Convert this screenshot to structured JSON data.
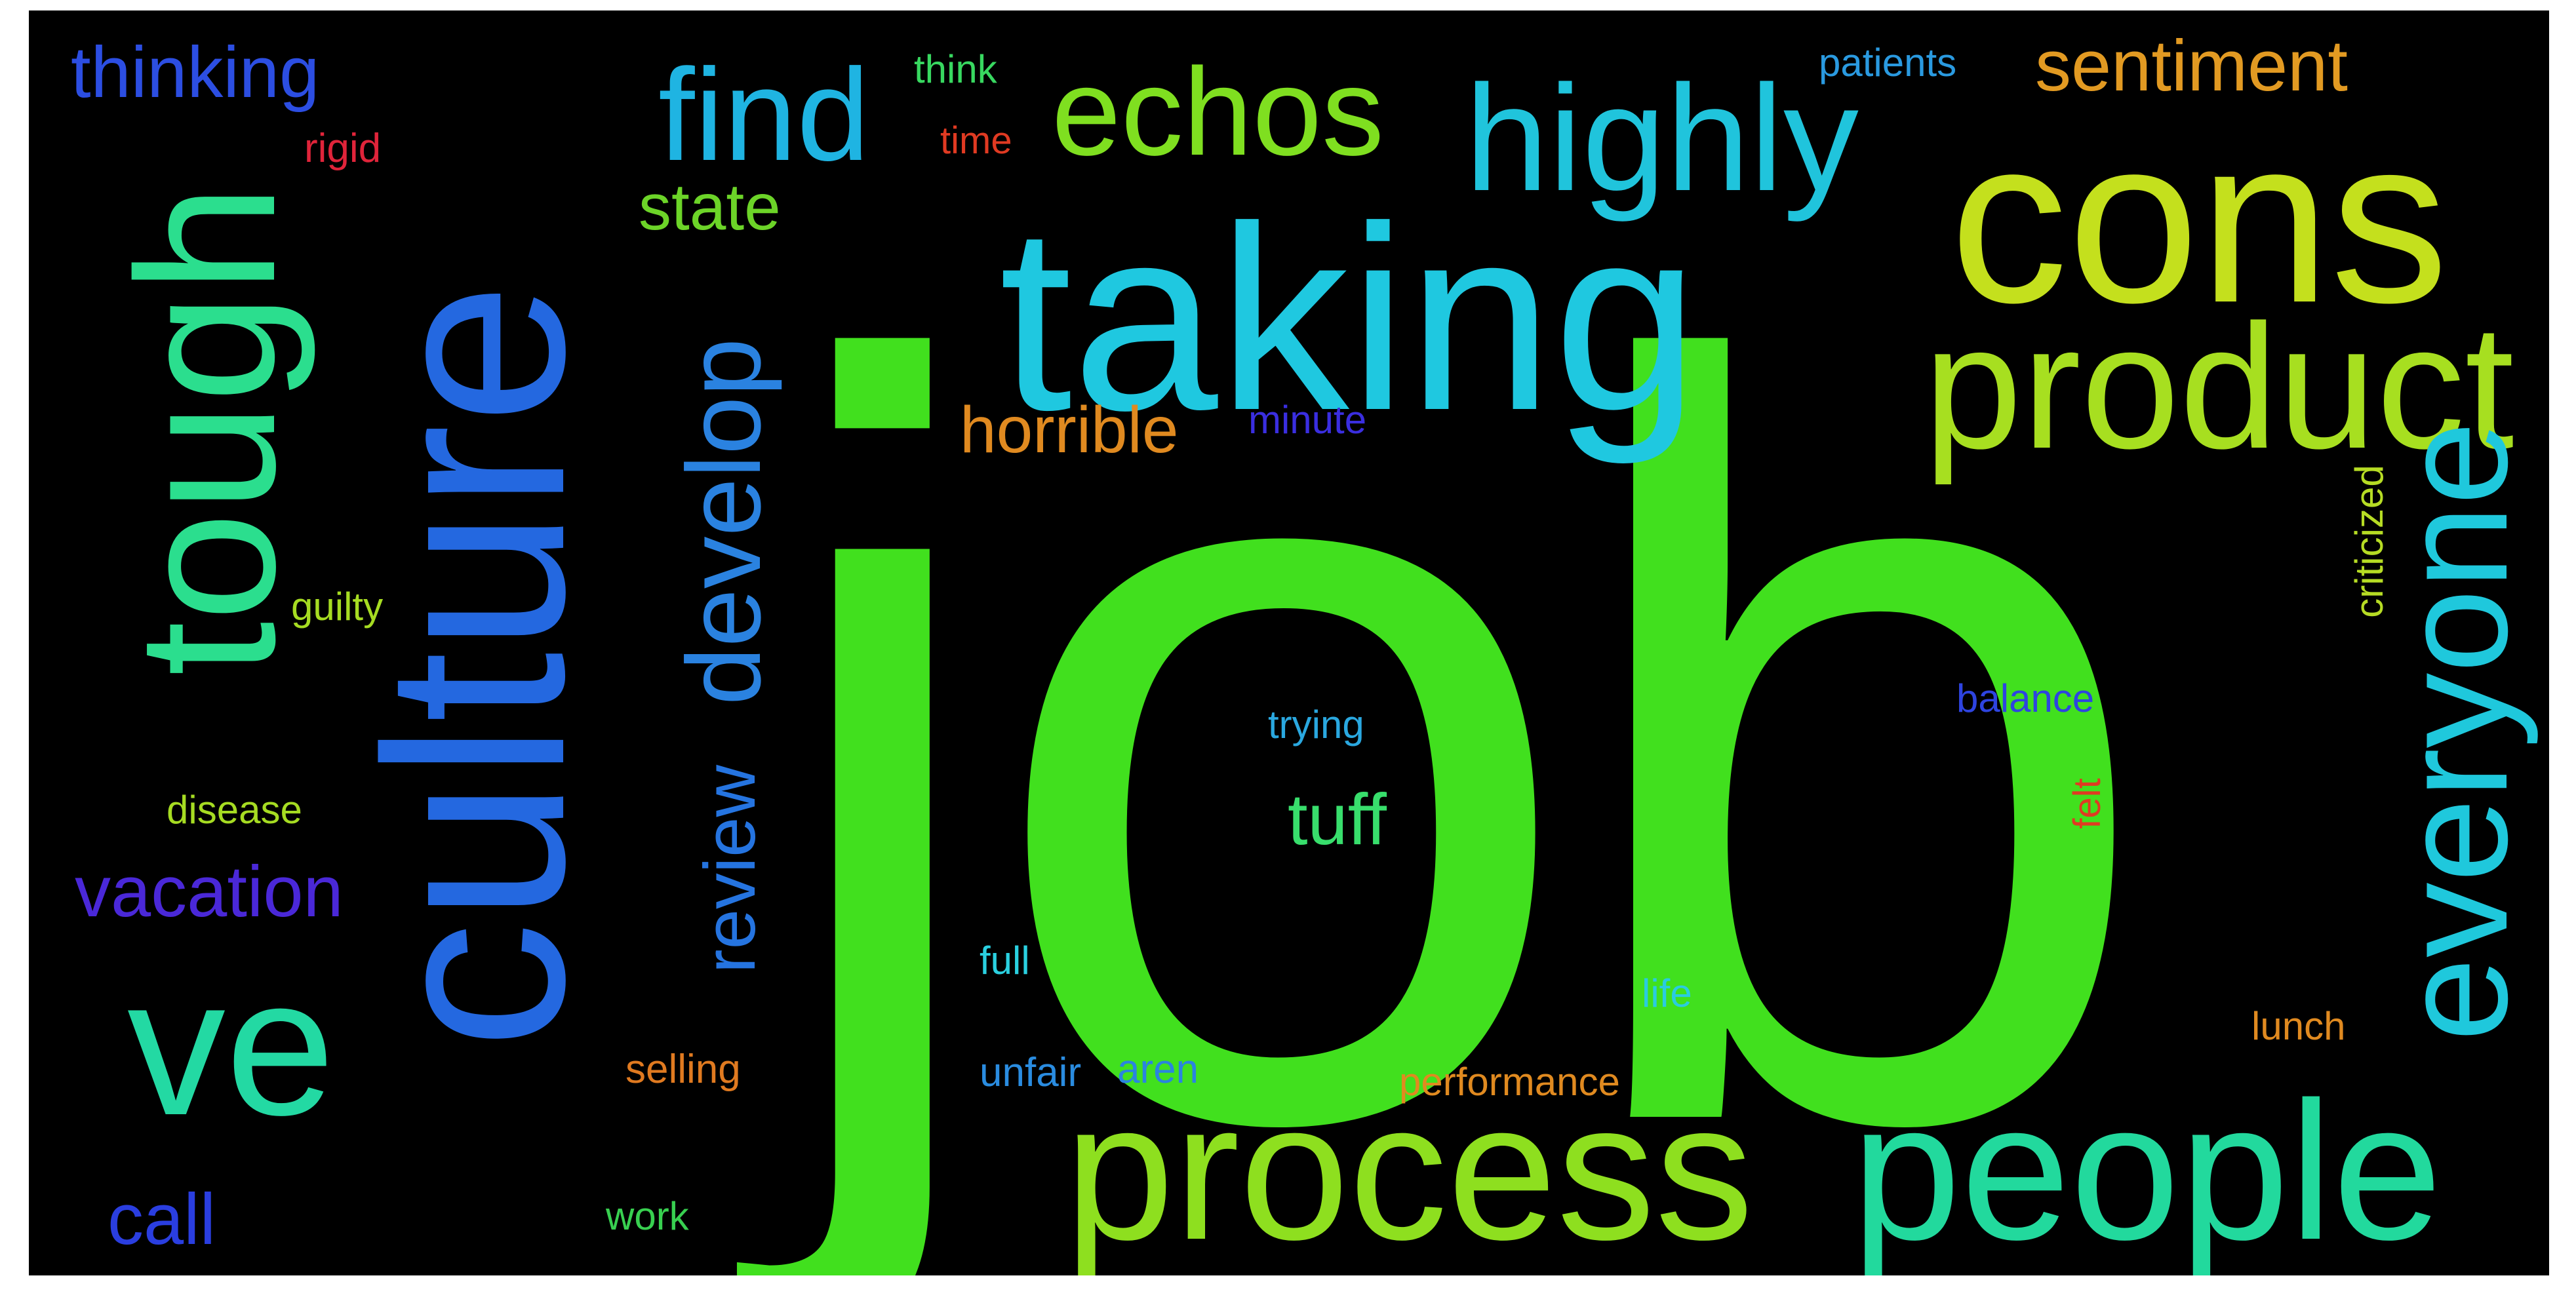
{
  "colors": {
    "background": "#000000",
    "frame": "#ffffff"
  },
  "words": {
    "job": {
      "text": "job",
      "color": "#41e01e"
    },
    "taking": {
      "text": "taking",
      "color": "#1fc8e0"
    },
    "culture": {
      "text": "culture",
      "color": "#2468e0"
    },
    "cons": {
      "text": "cons",
      "color": "#c4e01d"
    },
    "tough": {
      "text": "tough",
      "color": "#2bde8e"
    },
    "process": {
      "text": "process",
      "color": "#8edf1f"
    },
    "people": {
      "text": "people",
      "color": "#22d99d"
    },
    "product": {
      "text": "product",
      "color": "#a7df20"
    },
    "highly": {
      "text": "highly",
      "color": "#20c4dc"
    },
    "echos": {
      "text": "echos",
      "color": "#7fdf20"
    },
    "find": {
      "text": "find",
      "color": "#1fb4e2"
    },
    "ve": {
      "text": "ve",
      "color": "#23d9a3"
    },
    "everyone": {
      "text": "everyone",
      "color": "#1fc8dc"
    },
    "develop": {
      "text": "develop",
      "color": "#2a82e0"
    },
    "review": {
      "text": "review",
      "color": "#2574e0"
    },
    "sentiment": {
      "text": "sentiment",
      "color": "#e29a22"
    },
    "thinking": {
      "text": "thinking",
      "color": "#2c4ee2"
    },
    "vacation": {
      "text": "vacation",
      "color": "#4a28d8"
    },
    "call": {
      "text": "call",
      "color": "#2a3ee0"
    },
    "state": {
      "text": "state",
      "color": "#6cd428"
    },
    "horrible": {
      "text": "horrible",
      "color": "#e08a20"
    },
    "tuff": {
      "text": "tuff",
      "color": "#38de6c"
    },
    "minute": {
      "text": "minute",
      "color": "#3a2ee0"
    },
    "think": {
      "text": "think",
      "color": "#38d860"
    },
    "time": {
      "text": "time",
      "color": "#e03a22"
    },
    "rigid": {
      "text": "rigid",
      "color": "#e0243a"
    },
    "patients": {
      "text": "patients",
      "color": "#2a9ae0"
    },
    "guilty": {
      "text": "guilty",
      "color": "#a6dc22"
    },
    "disease": {
      "text": "disease",
      "color": "#a6dc22"
    },
    "trying": {
      "text": "trying",
      "color": "#2aa8e0"
    },
    "balance": {
      "text": "balance",
      "color": "#2e44e0"
    },
    "felt": {
      "text": "felt",
      "color": "#e03a22"
    },
    "criticized": {
      "text": "criticized",
      "color": "#b6dc24"
    },
    "lunch": {
      "text": "lunch",
      "color": "#e08a20"
    },
    "life": {
      "text": "life",
      "color": "#2acce0"
    },
    "full": {
      "text": "full",
      "color": "#2ad0e0"
    },
    "selling": {
      "text": "selling",
      "color": "#e07a20"
    },
    "unfair": {
      "text": "unfair",
      "color": "#2a8ce0"
    },
    "aren": {
      "text": "aren",
      "color": "#2a84e0"
    },
    "performance": {
      "text": "performance",
      "color": "#e08a20"
    },
    "work": {
      "text": "work",
      "color": "#38d050"
    }
  }
}
